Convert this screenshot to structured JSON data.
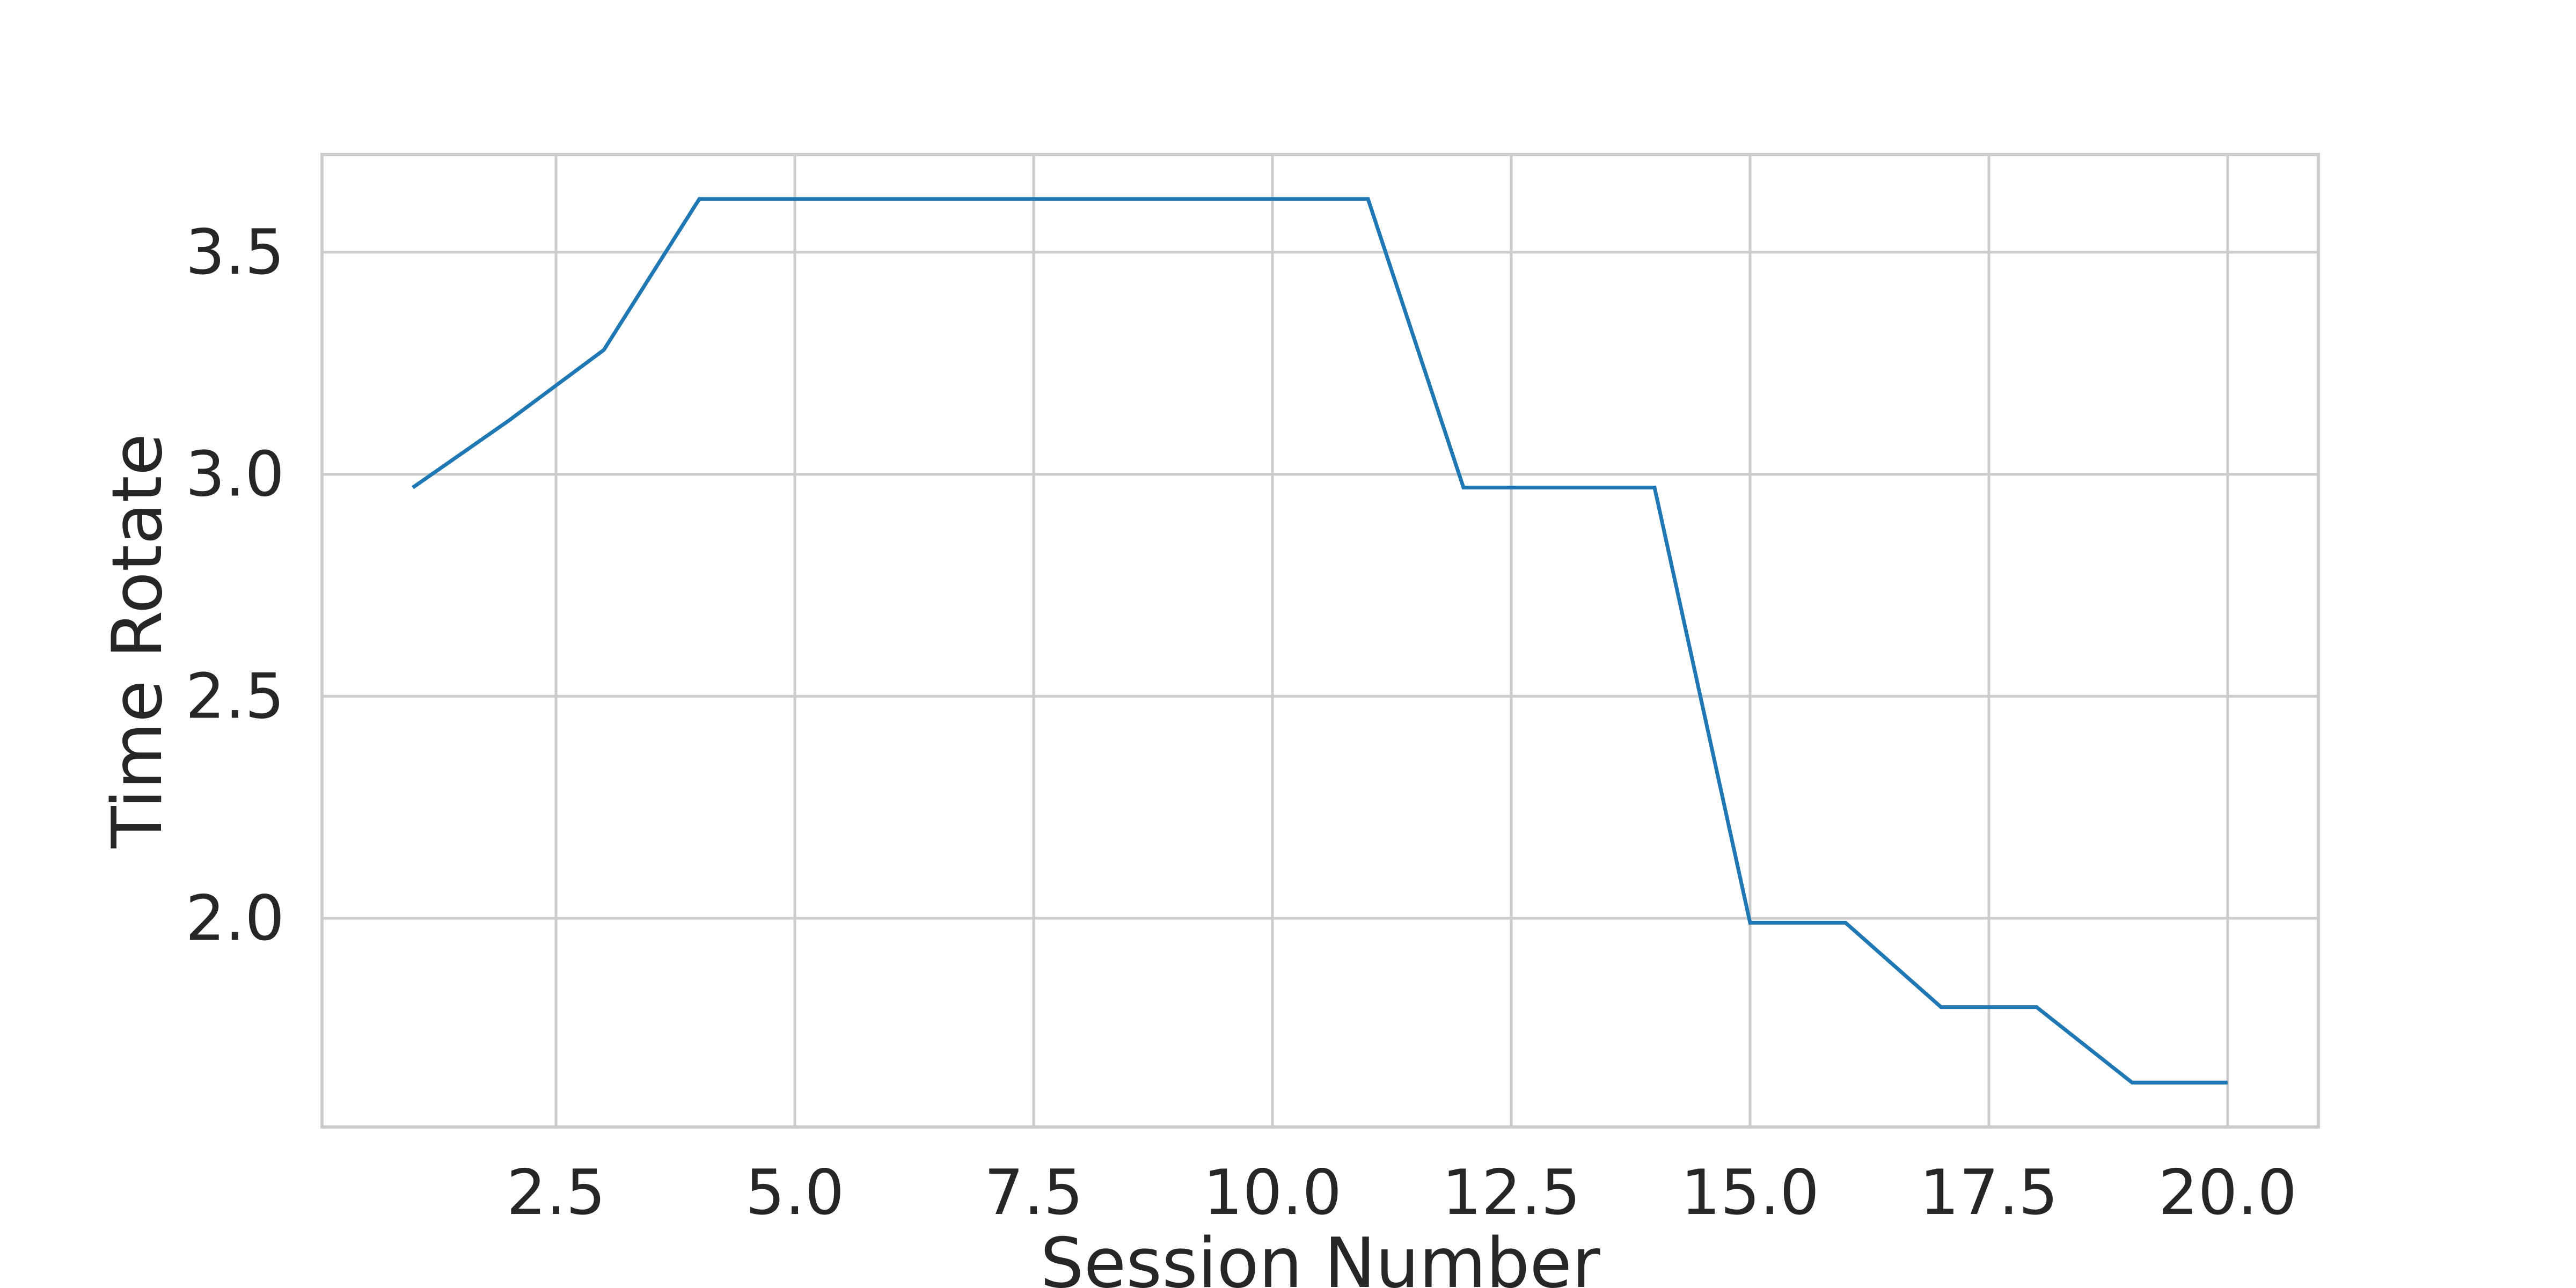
{
  "chart_data": {
    "type": "line",
    "xlabel": "Session Number",
    "ylabel": "Time Rotate",
    "xlim": [
      0.05,
      20.95
    ],
    "ylim": [
      1.53,
      3.72
    ],
    "xticks": [
      2.5,
      5.0,
      7.5,
      10.0,
      12.5,
      15.0,
      17.5,
      20.0
    ],
    "xtick_labels": [
      "2.5",
      "5.0",
      "7.5",
      "10.0",
      "12.5",
      "15.0",
      "17.5",
      "20.0"
    ],
    "yticks": [
      2.0,
      2.5,
      3.0,
      3.5
    ],
    "ytick_labels": [
      "2.0",
      "2.5",
      "3.0",
      "3.5"
    ],
    "grid": true,
    "series": [
      {
        "color": "#1f77b4",
        "x": [
          1,
          2,
          3,
          4,
          5,
          6,
          7,
          8,
          9,
          10,
          11,
          12,
          13,
          14,
          15,
          16,
          17,
          18,
          19,
          20
        ],
        "values": [
          2.97,
          3.12,
          3.28,
          3.62,
          3.62,
          3.62,
          3.62,
          3.62,
          3.62,
          3.62,
          3.62,
          2.97,
          2.97,
          2.97,
          1.99,
          1.99,
          1.8,
          1.8,
          1.63,
          1.63
        ]
      }
    ]
  }
}
